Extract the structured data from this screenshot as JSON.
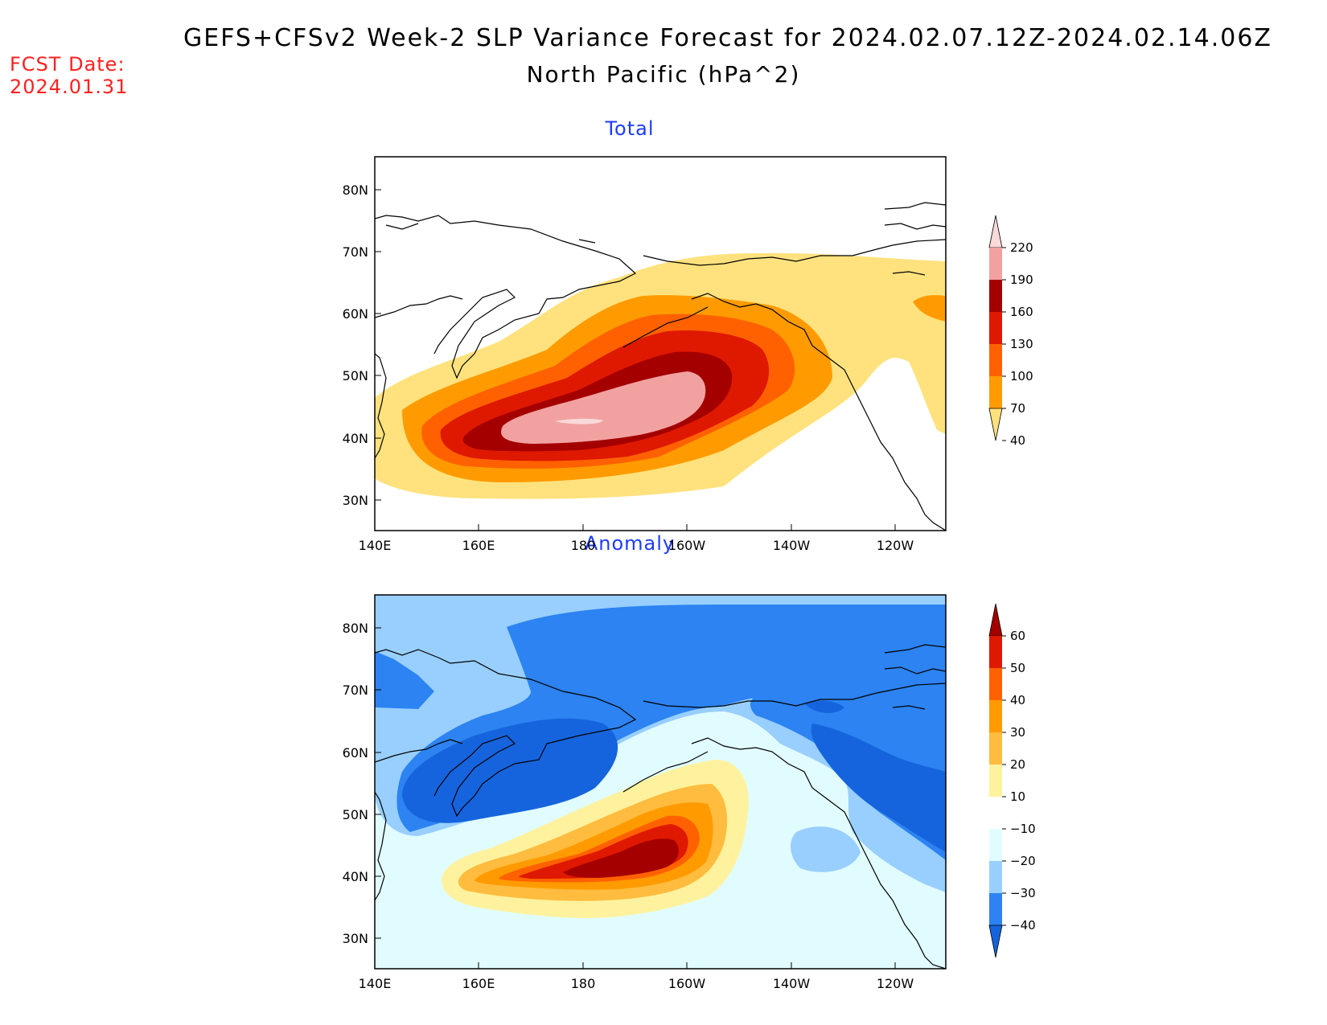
{
  "fcst_date_label": "FCST Date:",
  "fcst_date_value": "2024.01.31",
  "title_line1": "GEFS+CFSv2 Week-2 SLP Variance Forecast for 2024.02.07.12Z-2024.02.14.06Z",
  "title_line2": "North Pacific (hPa^2)",
  "panels": [
    {
      "title": "Total",
      "lat_ticks": [
        "80N",
        "70N",
        "60N",
        "50N",
        "40N",
        "30N"
      ],
      "lon_ticks": [
        "140E",
        "160E",
        "180",
        "160W",
        "140W",
        "120W"
      ],
      "colorbar": {
        "labels": [
          "220",
          "190",
          "160",
          "130",
          "100",
          "70",
          "40"
        ],
        "colors": [
          "#f9d9d9",
          "#f2a1a1",
          "#a40000",
          "#df1800",
          "#ff6100",
          "#ff9b00",
          "#ffe27d"
        ]
      }
    },
    {
      "title": "Anomaly",
      "lat_ticks": [
        "80N",
        "70N",
        "60N",
        "50N",
        "40N",
        "30N"
      ],
      "lon_ticks": [
        "140E",
        "160E",
        "180",
        "160W",
        "140W",
        "120W"
      ],
      "colorbar": {
        "labels": [
          "60",
          "50",
          "40",
          "30",
          "20",
          "10",
          "-10",
          "-20",
          "-30",
          "-40"
        ],
        "colors": [
          "#a40000",
          "#df1800",
          "#ff6100",
          "#ff9b00",
          "#ffbc3e",
          "#fff29e",
          "#ffffff",
          "#e1fcff",
          "#98cfff",
          "#2c83f1",
          "#1564dd"
        ]
      }
    }
  ]
}
